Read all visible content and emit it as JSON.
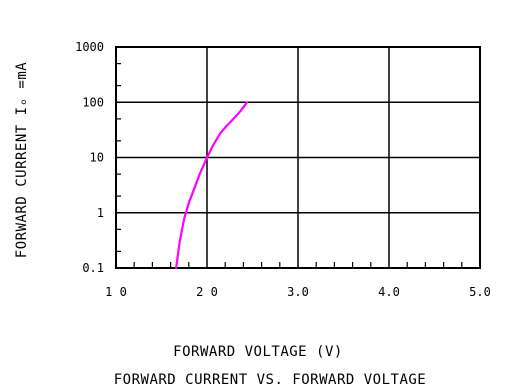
{
  "chart_data": {
    "type": "line",
    "title": "FORWARD CURRENT VS. FORWARD VOLTAGE",
    "xlabel": "FORWARD VOLTAGE (V)",
    "ylabel": "FORWARD CURRENT Iₒ =mA",
    "xlim": [
      1.0,
      5.0
    ],
    "ylim": [
      0.1,
      1000
    ],
    "y_scale": "log",
    "grid": true,
    "x_ticks": [
      1.0,
      2.0,
      3.0,
      4.0,
      5.0
    ],
    "x_tick_labels": [
      "1 0",
      "2 0",
      "3.0",
      "4.0",
      "5.0"
    ],
    "y_ticks": [
      0.1,
      1,
      10,
      100,
      1000
    ],
    "y_tick_labels": [
      "0.1",
      "1",
      "10",
      "100",
      "1000"
    ],
    "line_color": "#ff00ff",
    "series": [
      {
        "x": [
          1.66,
          1.7,
          1.75,
          1.8,
          1.85,
          1.92,
          2.0,
          2.07,
          2.15,
          2.22,
          2.3,
          2.37,
          2.44
        ],
        "y": [
          0.1,
          0.3,
          0.8,
          1.5,
          2.5,
          5,
          10,
          17,
          28,
          38,
          52,
          70,
          100
        ]
      }
    ]
  }
}
